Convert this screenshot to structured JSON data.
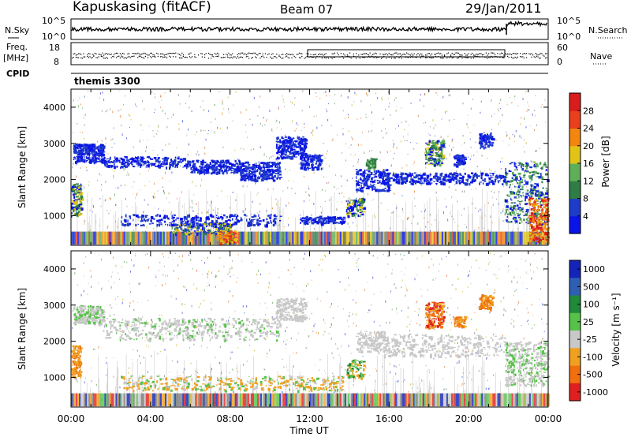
{
  "header": {
    "station": "Kapuskasing (fitACF)",
    "beam": "Beam 07",
    "date": "29/Jan/2011"
  },
  "left_labels": {
    "nsky": "N.Sky",
    "freq": "Freq.",
    "freq_unit": "[MHz]",
    "cpid": "CPID",
    "nsky_ticks": [
      "10^5",
      "10^0"
    ],
    "freq_ticks": [
      "18",
      "8"
    ]
  },
  "right_labels": {
    "nsearch": "N.Search",
    "nave": "Nave",
    "nsearch_ticks": [
      "10^5",
      "10^0"
    ],
    "nave_ticks": [
      "60",
      "0"
    ]
  },
  "cpid_text": "themis 3300",
  "colors": {
    "power_scale": [
      "#0a14e6",
      "#1e3cc8",
      "#2f7d44",
      "#5fae5a",
      "#e0c417",
      "#f2860f",
      "#e8401c",
      "#d91c1c"
    ],
    "velocity_scale": [
      "#1423b8",
      "#2f5fb2",
      "#1f8a3a",
      "#57c24a",
      "#c8c8c8",
      "#f0a020",
      "#f07010",
      "#e02020"
    ],
    "speckle": [
      "#2b3fd6",
      "#5a9a50",
      "#d0b020",
      "#c0c0c0",
      "#7a7a7a",
      "#e07020"
    ]
  },
  "chart_data": [
    {
      "type": "heatmap",
      "name": "power",
      "xlabel": "",
      "ylabel": "Slant Range [km]",
      "x_ticks": [
        "00:00",
        "04:00",
        "08:00",
        "12:00",
        "16:00",
        "20:00",
        "00:00"
      ],
      "y_ticks": [
        1000,
        2000,
        3000,
        4000
      ],
      "xlim_hours": [
        0,
        24
      ],
      "ylim_km": [
        180,
        4500
      ],
      "colorbar": {
        "label": "Power [dB]",
        "ticks": [
          4,
          8,
          12,
          16,
          20,
          24,
          28
        ],
        "range": [
          0,
          32
        ]
      }
    },
    {
      "type": "heatmap",
      "name": "velocity",
      "xlabel": "Time UT",
      "ylabel": "Slant Range [km]",
      "x_ticks": [
        "00:00",
        "04:00",
        "08:00",
        "12:00",
        "16:00",
        "20:00",
        "00:00"
      ],
      "y_ticks": [
        1000,
        2000,
        3000,
        4000
      ],
      "xlim_hours": [
        0,
        24
      ],
      "ylim_km": [
        180,
        4500
      ],
      "colorbar": {
        "label": "Velocity [m s⁻¹]",
        "ticks": [
          "1000",
          "500",
          "100",
          "25",
          "-25",
          "-100",
          "-500",
          "-1000"
        ]
      }
    }
  ]
}
